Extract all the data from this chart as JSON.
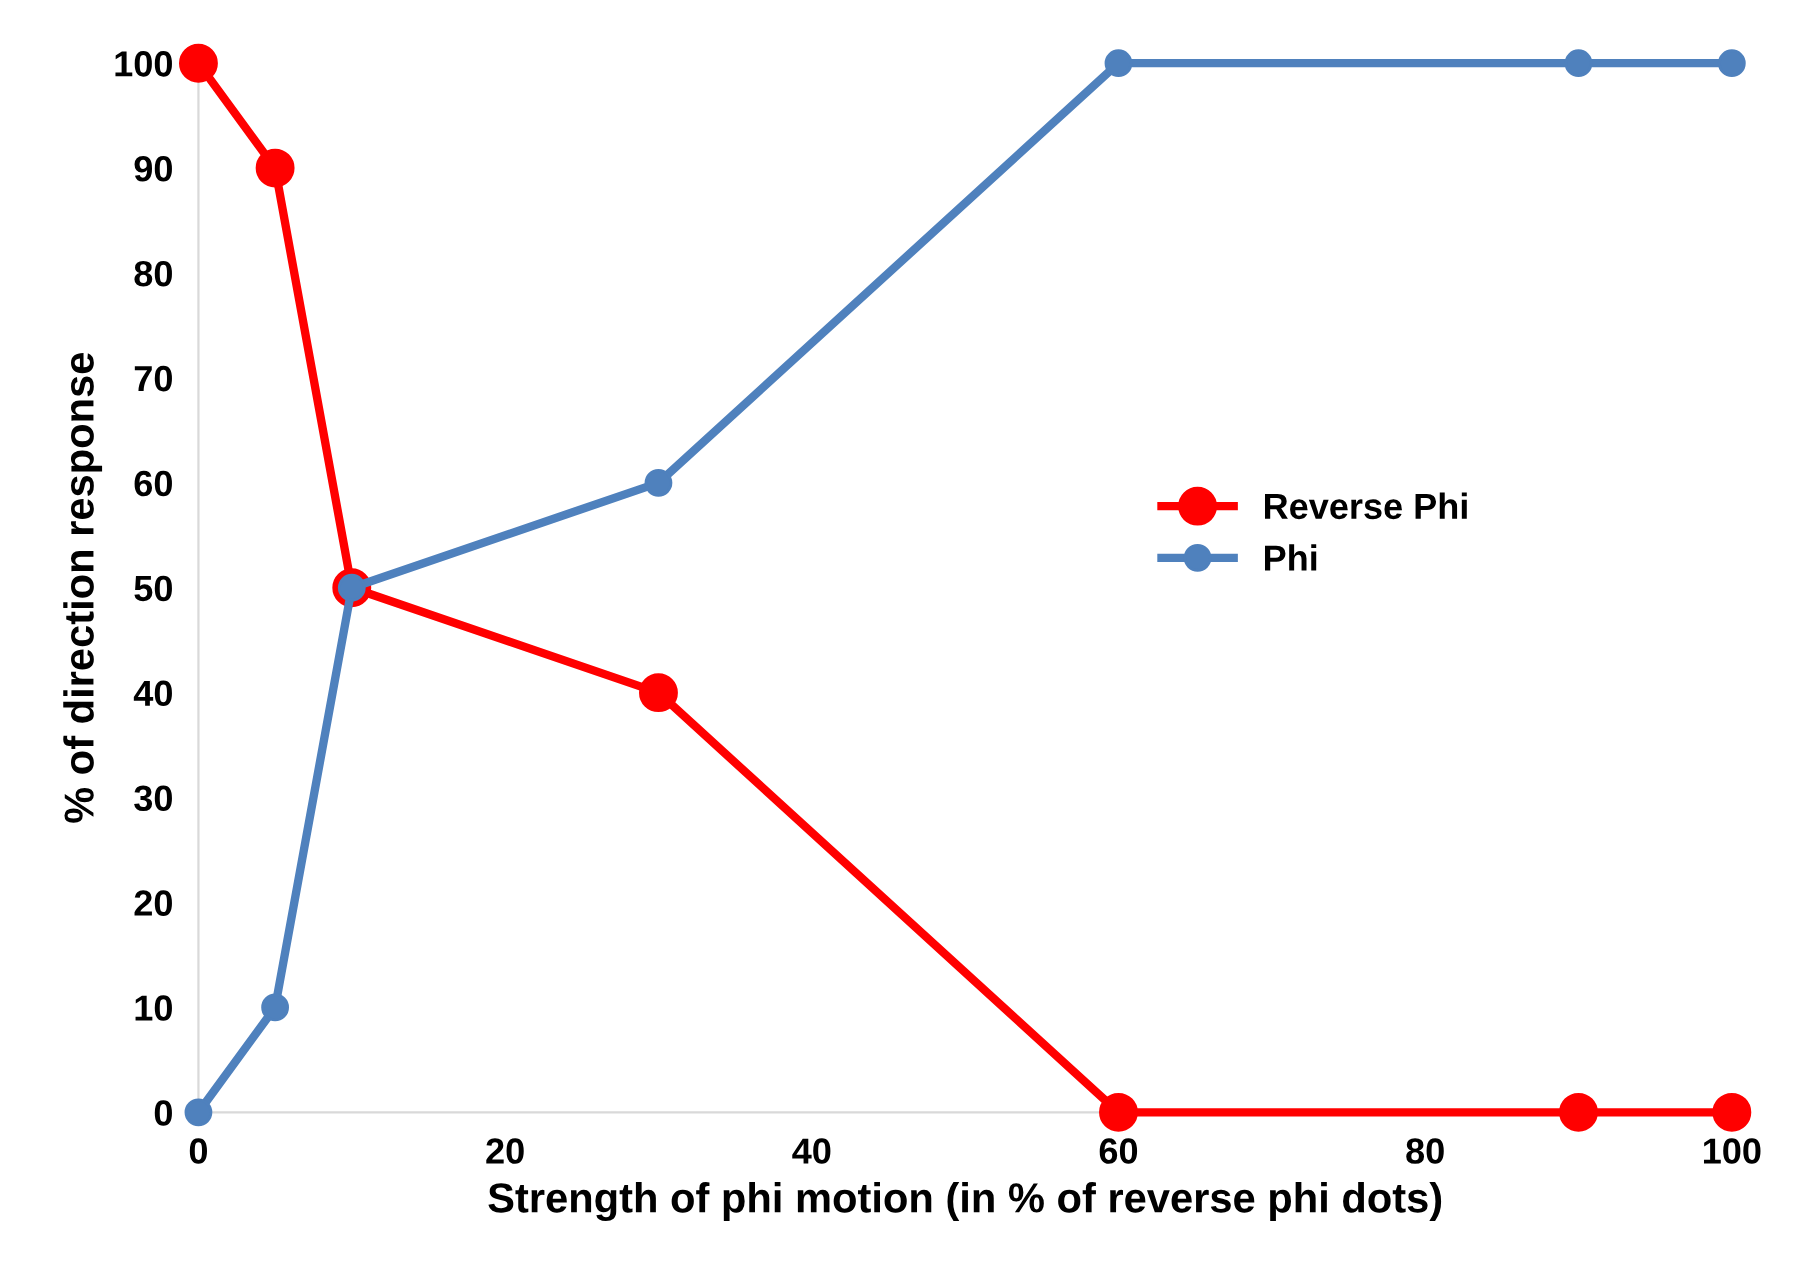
{
  "chart_data": {
    "type": "line",
    "xlabel": "Strength of phi motion (in % of reverse phi dots)",
    "ylabel": "% of direction response",
    "x": [
      0,
      5,
      10,
      30,
      60,
      90,
      100
    ],
    "series": [
      {
        "name": "Reverse Phi",
        "color": "#ff0000",
        "values": [
          100,
          90,
          50,
          40,
          0,
          0,
          0
        ]
      },
      {
        "name": "Phi",
        "color": "#4f81bd",
        "values": [
          0,
          10,
          50,
          60,
          100,
          100,
          100
        ]
      }
    ],
    "xlim": [
      0,
      100
    ],
    "xticks": [
      0,
      20,
      40,
      60,
      80,
      100
    ],
    "ylim": [
      0,
      100
    ],
    "yticks": [
      0,
      10,
      20,
      30,
      40,
      50,
      60,
      70,
      80,
      90,
      100
    ],
    "grid": false,
    "legend": "right",
    "marker": "circle",
    "line_style": "solid"
  }
}
